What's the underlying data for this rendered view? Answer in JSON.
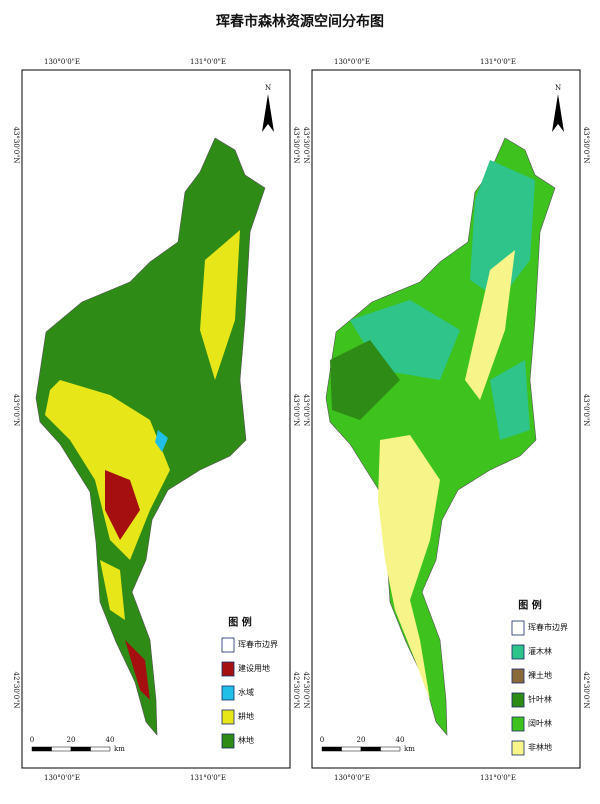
{
  "title": "珲春市森林资源空间分布图",
  "maps": [
    {
      "top_labels": [
        "130°0'0\"E",
        "131°0'0\"E"
      ],
      "bottom_labels": [
        "130°0'0\"E",
        "131°0'0\"E"
      ],
      "left_labels": [
        "43°30'0\"N",
        "43°0'0\"N",
        "42°30'0\"N"
      ],
      "right_labels": [
        "43°30'0\"N",
        "43°0'0\"N",
        "42°30'0\"N"
      ],
      "north": "N",
      "legend_title": "图 例",
      "legend": [
        {
          "label": "珲春市边界",
          "color": "#ffffff"
        },
        {
          "label": "建设用地",
          "color": "#a50f0f"
        },
        {
          "label": "水域",
          "color": "#1fbfe8"
        },
        {
          "label": "耕地",
          "color": "#e6e619"
        },
        {
          "label": "林地",
          "color": "#2e8b16"
        }
      ],
      "scale": [
        "0",
        "20",
        "40"
      ],
      "scale_unit": "km"
    },
    {
      "top_labels": [
        "130°0'0\"E",
        "131°0'0\"E"
      ],
      "bottom_labels": [
        "130°0'0\"E",
        "131°0'0\"E"
      ],
      "left_labels": [
        "43°30'0\"N",
        "43°0'0\"N",
        "42°30'0\"N"
      ],
      "right_labels": [
        "43°30'0\"N",
        "43°0'0\"N",
        "42°30'0\"N"
      ],
      "north": "N",
      "legend_title": "图 例",
      "legend": [
        {
          "label": "珲春市边界",
          "color": "#ffffff"
        },
        {
          "label": "灌木林",
          "color": "#2ec48a"
        },
        {
          "label": "裸土地",
          "color": "#8b6a3a"
        },
        {
          "label": "针叶林",
          "color": "#2e8b16"
        },
        {
          "label": "阔叶林",
          "color": "#3ec21e"
        },
        {
          "label": "非林地",
          "color": "#f7f58a"
        }
      ],
      "scale": [
        "0",
        "20",
        "40"
      ],
      "scale_unit": "km"
    }
  ]
}
